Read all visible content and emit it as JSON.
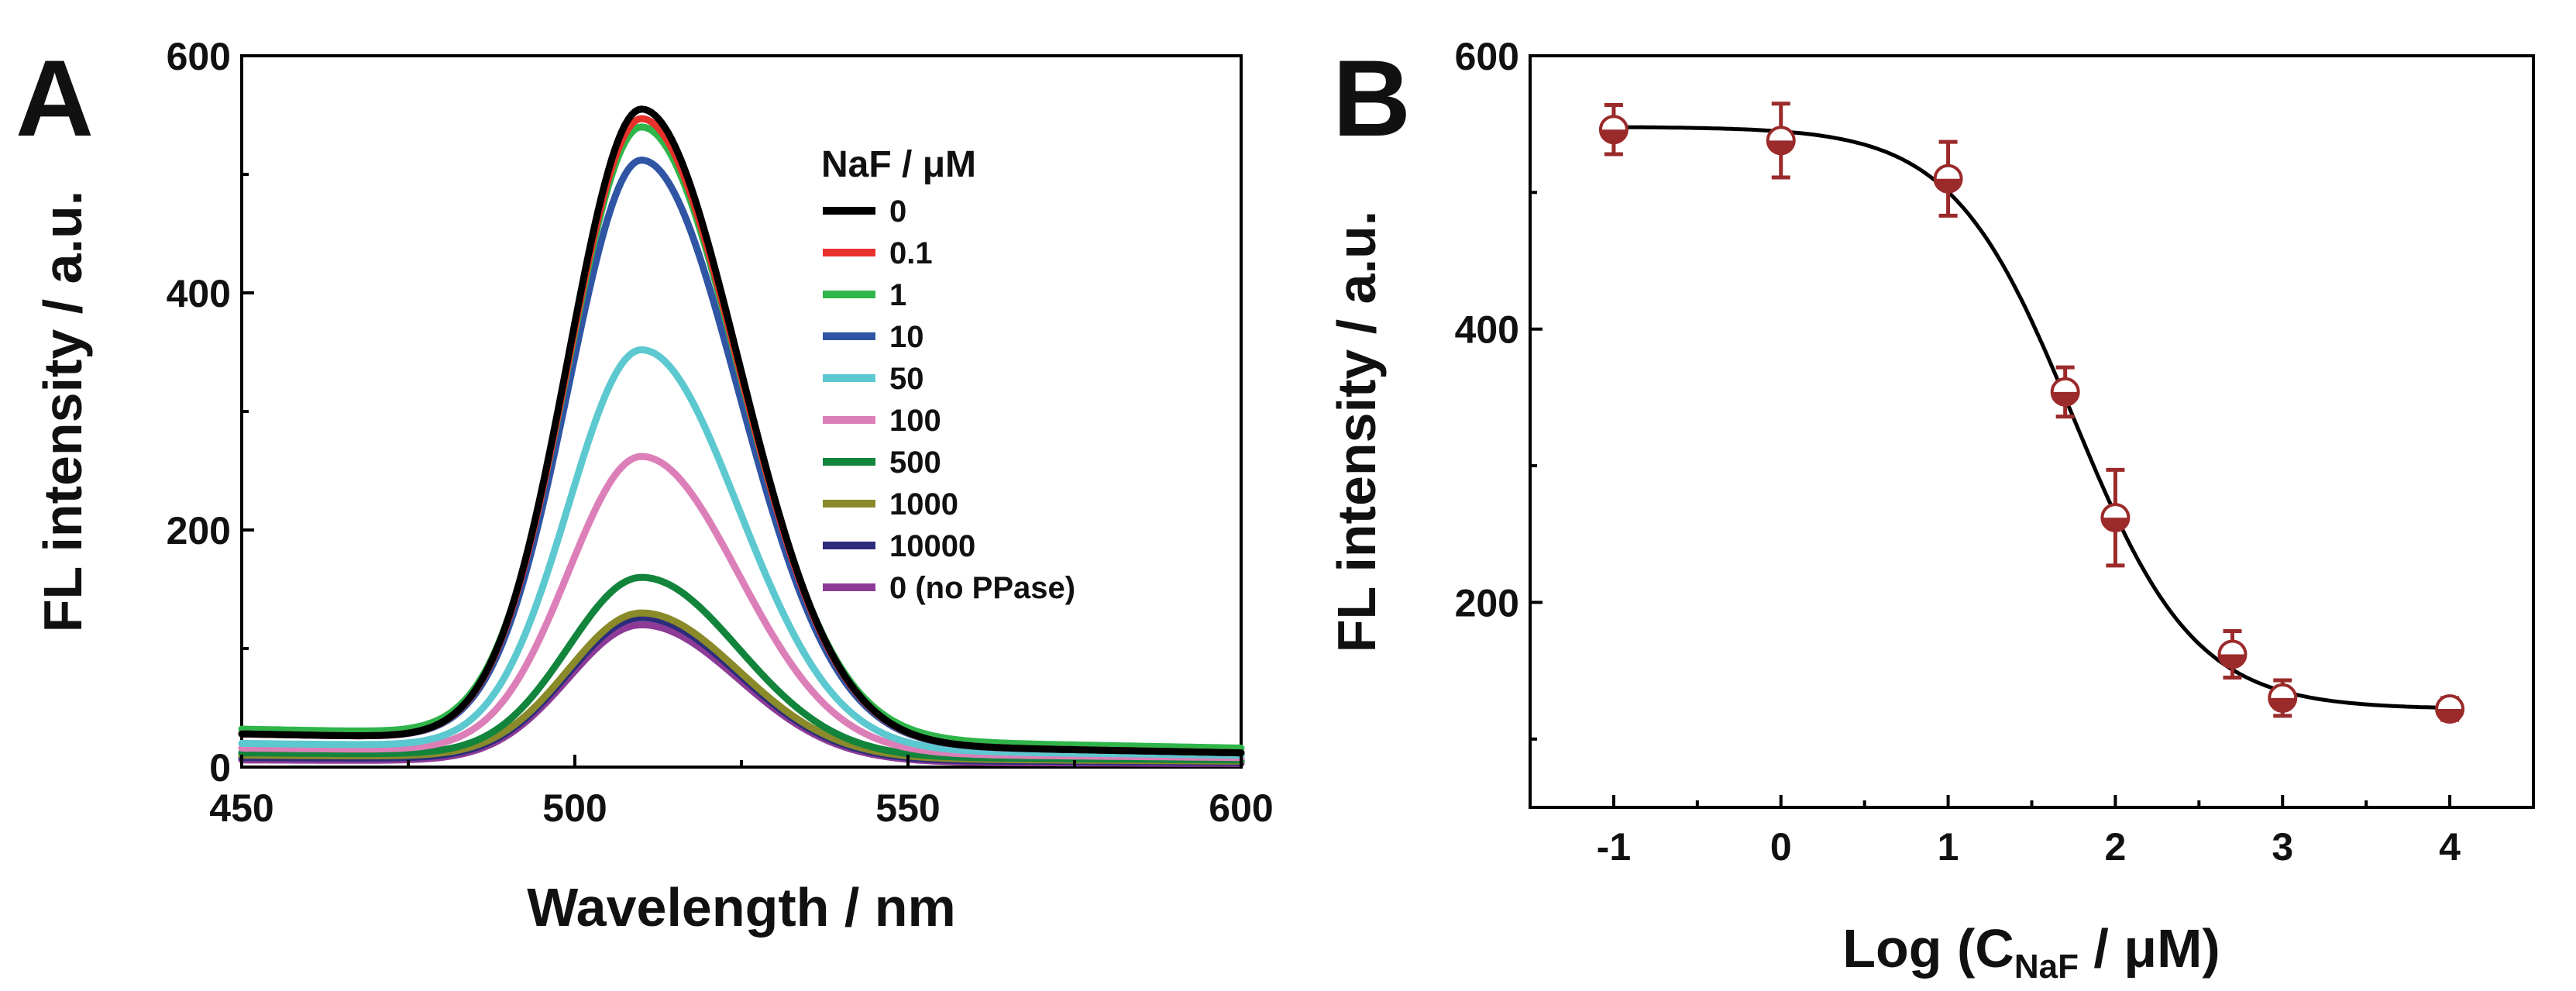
{
  "chart_data": [
    {
      "panel_label": "A",
      "type": "line",
      "xlabel": "Wavelength / nm",
      "ylabel": "FL intensity / a.u.",
      "xlim": [
        450,
        600
      ],
      "ylim": [
        0,
        600
      ],
      "xticks": [
        "450",
        "500",
        "550",
        "600"
      ],
      "yticks": [
        "0",
        "200",
        "400",
        "600"
      ],
      "legend_title": "NaF / μM",
      "legend_position": "top-right",
      "peak_wavelength": 510,
      "series": [
        {
          "name": "0",
          "color": "#000000",
          "peak": 555,
          "baseline_start": 28,
          "baseline_end": 12
        },
        {
          "name": "0.1",
          "color": "#e8312a",
          "peak": 547,
          "baseline_start": 28,
          "baseline_end": 12
        },
        {
          "name": "1",
          "color": "#2fb54a",
          "peak": 540,
          "baseline_start": 32,
          "baseline_end": 16
        },
        {
          "name": "10",
          "color": "#2f55a4",
          "peak": 512,
          "baseline_start": 28,
          "baseline_end": 12
        },
        {
          "name": "50",
          "color": "#5cc8cf",
          "peak": 352,
          "baseline_start": 20,
          "baseline_end": 10
        },
        {
          "name": "100",
          "color": "#dc7fb8",
          "peak": 262,
          "baseline_start": 16,
          "baseline_end": 8
        },
        {
          "name": "500",
          "color": "#12843c",
          "peak": 160,
          "baseline_start": 12,
          "baseline_end": 6
        },
        {
          "name": "1000",
          "color": "#8a8a2a",
          "peak": 130,
          "baseline_start": 10,
          "baseline_end": 5
        },
        {
          "name": "10000",
          "color": "#2b2c7c",
          "peak": 126,
          "baseline_start": 8,
          "baseline_end": 4
        },
        {
          "name": "0 (no PPase)",
          "color": "#8d3b97",
          "peak": 120,
          "baseline_start": 6,
          "baseline_end": 3
        }
      ]
    },
    {
      "panel_label": "B",
      "type": "scatter",
      "xlabel_main": "Log (C",
      "xlabel_sub": "NaF",
      "xlabel_tail": " / μM)",
      "ylabel": "FL intensity / a.u.",
      "xlim": [
        -1.5,
        4.5
      ],
      "ylim": [
        50,
        600
      ],
      "xticks": [
        "-1",
        "0",
        "1",
        "2",
        "3",
        "4"
      ],
      "yticks": [
        "200",
        "400",
        "600"
      ],
      "marker_color": "#9b2a2a",
      "points": [
        {
          "x": -1,
          "y": 546,
          "err": 18
        },
        {
          "x": 0,
          "y": 538,
          "err": 27
        },
        {
          "x": 1,
          "y": 510,
          "err": 27
        },
        {
          "x": 1.7,
          "y": 354,
          "err": 18
        },
        {
          "x": 2,
          "y": 262,
          "err": 35
        },
        {
          "x": 2.7,
          "y": 162,
          "err": 17
        },
        {
          "x": 3,
          "y": 130,
          "err": 13
        },
        {
          "x": 4,
          "y": 122,
          "err": 8
        }
      ],
      "fit": {
        "top": 548,
        "bottom": 122,
        "logEC50": 1.75,
        "hill": 1.2
      }
    }
  ]
}
